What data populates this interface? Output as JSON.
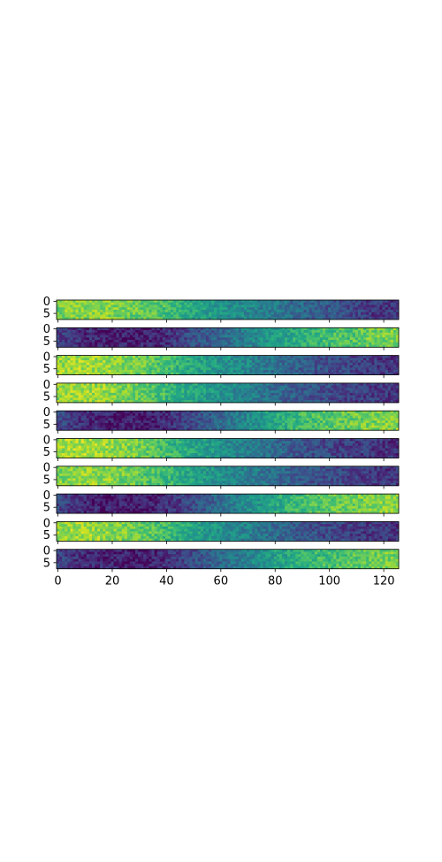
{
  "chart_data": {
    "type": "heatmap",
    "colormap": "viridis",
    "panel_count": 10,
    "rows_per_panel": 8,
    "columns_per_panel": 126,
    "x_ticks": [
      0,
      20,
      40,
      60,
      80,
      100,
      120
    ],
    "y_ticks": [
      0,
      5
    ],
    "xlim": [
      -0.5,
      125.5
    ],
    "ylim": [
      7.5,
      -0.5
    ],
    "panels": [
      {
        "pattern": "high-left",
        "profile": [
          0.8,
          0.83,
          0.82,
          0.78,
          0.74,
          0.64,
          0.55,
          0.5,
          0.46,
          0.4,
          0.33,
          0.28,
          0.23,
          0.17,
          0.16
        ]
      },
      {
        "pattern": "low-left",
        "profile": [
          0.2,
          0.13,
          0.09,
          0.08,
          0.1,
          0.18,
          0.27,
          0.35,
          0.45,
          0.55,
          0.62,
          0.69,
          0.72,
          0.78,
          0.8
        ]
      },
      {
        "pattern": "high-left",
        "profile": [
          0.84,
          0.86,
          0.84,
          0.79,
          0.73,
          0.64,
          0.56,
          0.5,
          0.44,
          0.36,
          0.29,
          0.25,
          0.2,
          0.17,
          0.15
        ]
      },
      {
        "pattern": "high-left",
        "profile": [
          0.83,
          0.86,
          0.84,
          0.78,
          0.72,
          0.62,
          0.55,
          0.49,
          0.42,
          0.34,
          0.27,
          0.24,
          0.19,
          0.17,
          0.15
        ]
      },
      {
        "pattern": "low-left",
        "profile": [
          0.22,
          0.14,
          0.09,
          0.07,
          0.09,
          0.17,
          0.27,
          0.37,
          0.48,
          0.6,
          0.68,
          0.73,
          0.76,
          0.8,
          0.82
        ]
      },
      {
        "pattern": "high-left",
        "profile": [
          0.86,
          0.88,
          0.85,
          0.8,
          0.73,
          0.63,
          0.55,
          0.48,
          0.41,
          0.33,
          0.26,
          0.22,
          0.18,
          0.16,
          0.14
        ]
      },
      {
        "pattern": "high-left",
        "profile": [
          0.8,
          0.84,
          0.82,
          0.77,
          0.71,
          0.62,
          0.54,
          0.48,
          0.42,
          0.35,
          0.28,
          0.24,
          0.2,
          0.17,
          0.15
        ]
      },
      {
        "pattern": "low-left",
        "profile": [
          0.21,
          0.12,
          0.08,
          0.07,
          0.09,
          0.17,
          0.28,
          0.38,
          0.5,
          0.6,
          0.68,
          0.74,
          0.77,
          0.81,
          0.83
        ]
      },
      {
        "pattern": "high-left",
        "profile": [
          0.84,
          0.86,
          0.83,
          0.78,
          0.72,
          0.63,
          0.55,
          0.48,
          0.42,
          0.34,
          0.27,
          0.23,
          0.19,
          0.16,
          0.14
        ]
      },
      {
        "pattern": "low-left",
        "profile": [
          0.2,
          0.13,
          0.1,
          0.08,
          0.1,
          0.18,
          0.28,
          0.36,
          0.46,
          0.56,
          0.63,
          0.69,
          0.73,
          0.77,
          0.79
        ]
      }
    ]
  }
}
